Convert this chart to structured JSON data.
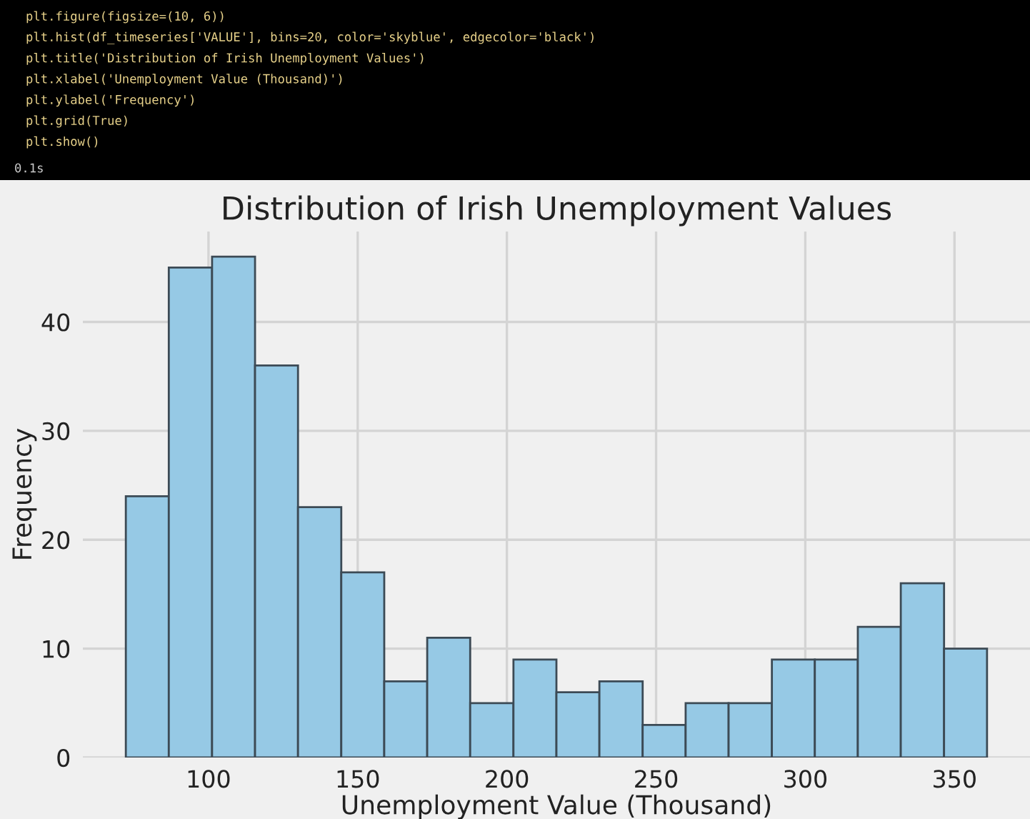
{
  "chart_data": {
    "type": "histogram",
    "title": "Distribution of Irish Unemployment Values",
    "xlabel": "Unemployment Value (Thousand)",
    "ylabel": "Frequency",
    "bins": [
      72.3,
      86.7,
      101.2,
      115.6,
      130.0,
      144.5,
      158.9,
      173.3,
      187.7,
      202.2,
      216.6,
      231.0,
      245.5,
      259.9,
      274.3,
      288.8,
      303.2,
      317.6,
      332.0,
      346.5,
      360.9
    ],
    "values": [
      24,
      45,
      46,
      36,
      23,
      17,
      7,
      11,
      5,
      9,
      6,
      7,
      3,
      5,
      5,
      9,
      9,
      12,
      16,
      10
    ],
    "color": "#96c9e5",
    "xlim": [
      57.9,
      375.3
    ],
    "ylim": [
      0,
      48.3
    ],
    "xticks": [
      100,
      150,
      200,
      250,
      300,
      350
    ],
    "yticks": [
      0,
      10,
      20,
      30,
      40
    ],
    "grid": true,
    "annotations": [
      "plt.figure(figsize=(10, 6))",
      "plt.hist(df_timeseries['VALUE'], bins=20, color='skyblue', edgecolor='black')",
      "plt.title('Distribution of Irish Unemployment Values')",
      "plt.xlabel('Unemployment Value (Thousand)')",
      "plt.ylabel('Frequency')",
      "plt.grid(True)",
      "plt.show()",
      "0.1s"
    ]
  }
}
